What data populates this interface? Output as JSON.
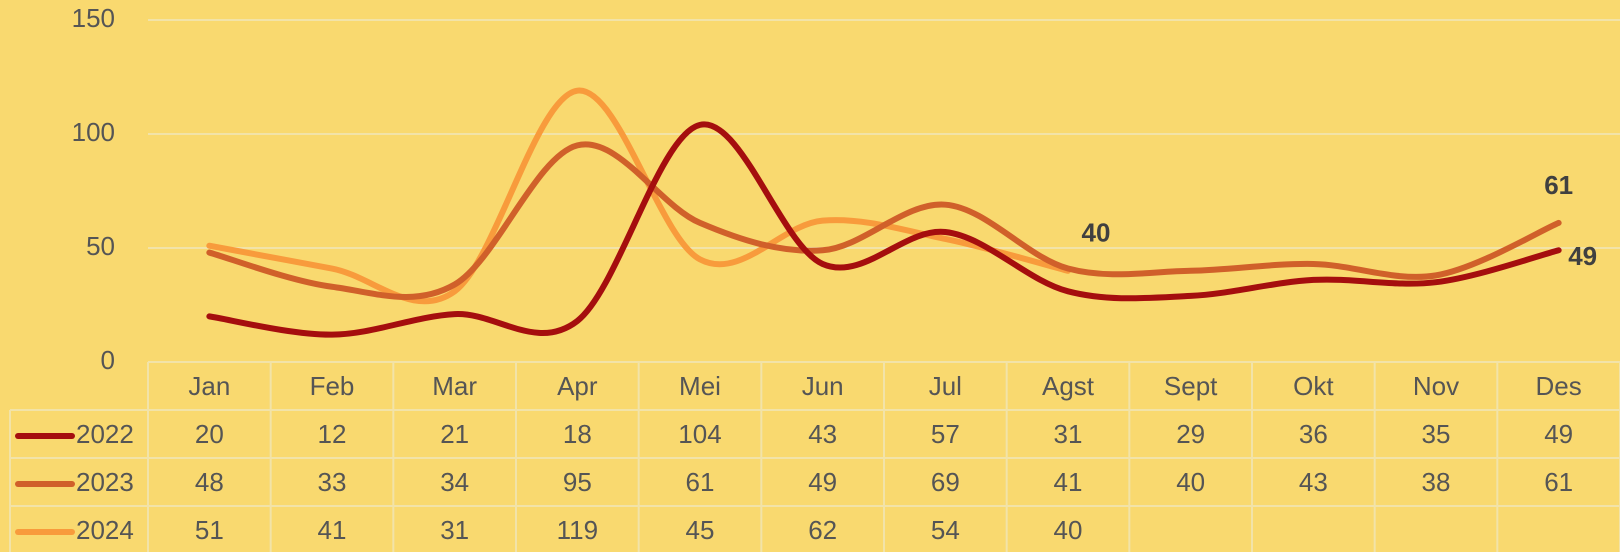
{
  "chart_data": {
    "type": "line",
    "categories": [
      "Jan",
      "Feb",
      "Mar",
      "Apr",
      "Mei",
      "Jun",
      "Jul",
      "Agst",
      "Sept",
      "Okt",
      "Nov",
      "Des"
    ],
    "series": [
      {
        "name": "2022",
        "color": "#a50e0e",
        "values": [
          20,
          12,
          21,
          18,
          104,
          43,
          57,
          31,
          29,
          36,
          35,
          49
        ]
      },
      {
        "name": "2023",
        "color": "#d0602a",
        "values": [
          48,
          33,
          34,
          95,
          61,
          49,
          69,
          41,
          40,
          43,
          38,
          61
        ]
      },
      {
        "name": "2024",
        "color": "#f89b3c",
        "values": [
          51,
          41,
          31,
          119,
          45,
          62,
          54,
          40,
          null,
          null,
          null,
          null
        ]
      }
    ],
    "ylim": [
      0,
      150
    ],
    "yticks": [
      0,
      50,
      100,
      150
    ],
    "grid": true,
    "smooth": true,
    "data_table": true
  }
}
